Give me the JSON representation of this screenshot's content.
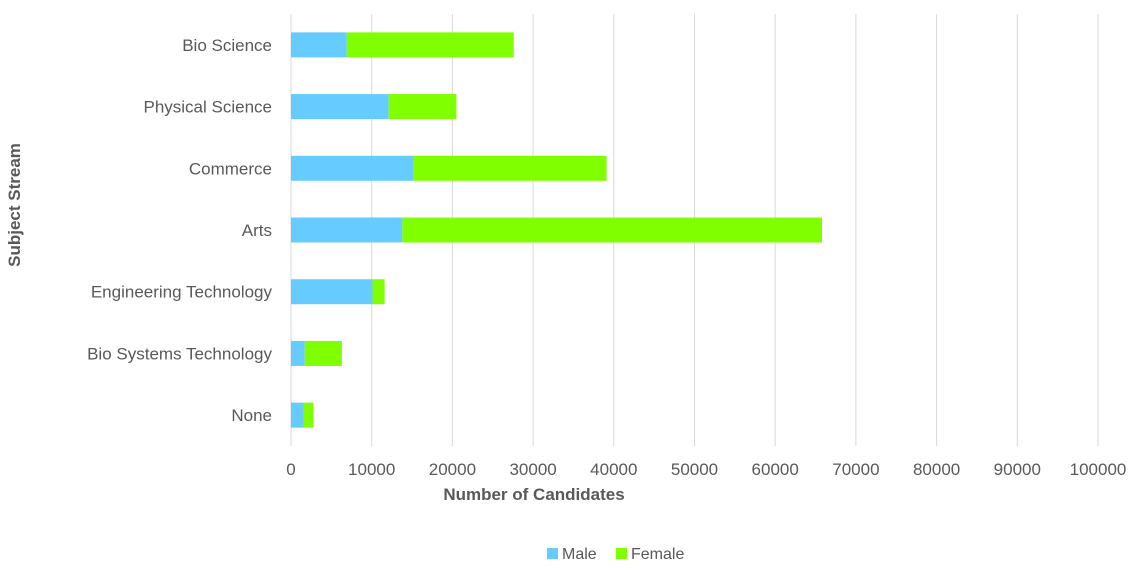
{
  "chart_data": {
    "type": "bar",
    "orientation": "horizontal",
    "stacked": true,
    "categories": [
      "Bio Science",
      "Physical Science",
      "Commerce",
      "Arts",
      "Engineering Technology",
      "Bio Systems Technology",
      "None"
    ],
    "series": [
      {
        "name": "Male",
        "values": [
          6900,
          12100,
          15200,
          13800,
          10100,
          1700,
          1600
        ]
      },
      {
        "name": "Female",
        "values": [
          20700,
          8400,
          23900,
          52000,
          1500,
          4600,
          1200
        ]
      }
    ],
    "xlabel": "Number of Candidates",
    "ylabel": "Subject Stream",
    "xlim": [
      0,
      100000
    ],
    "x_ticks": [
      "0",
      "10000",
      "20000",
      "30000",
      "40000",
      "50000",
      "60000",
      "70000",
      "80000",
      "90000",
      "100000"
    ],
    "grid": "vertical",
    "legend_position": "bottom",
    "colors": {
      "Male": "#66ccff",
      "Female": "#80ff00"
    }
  }
}
